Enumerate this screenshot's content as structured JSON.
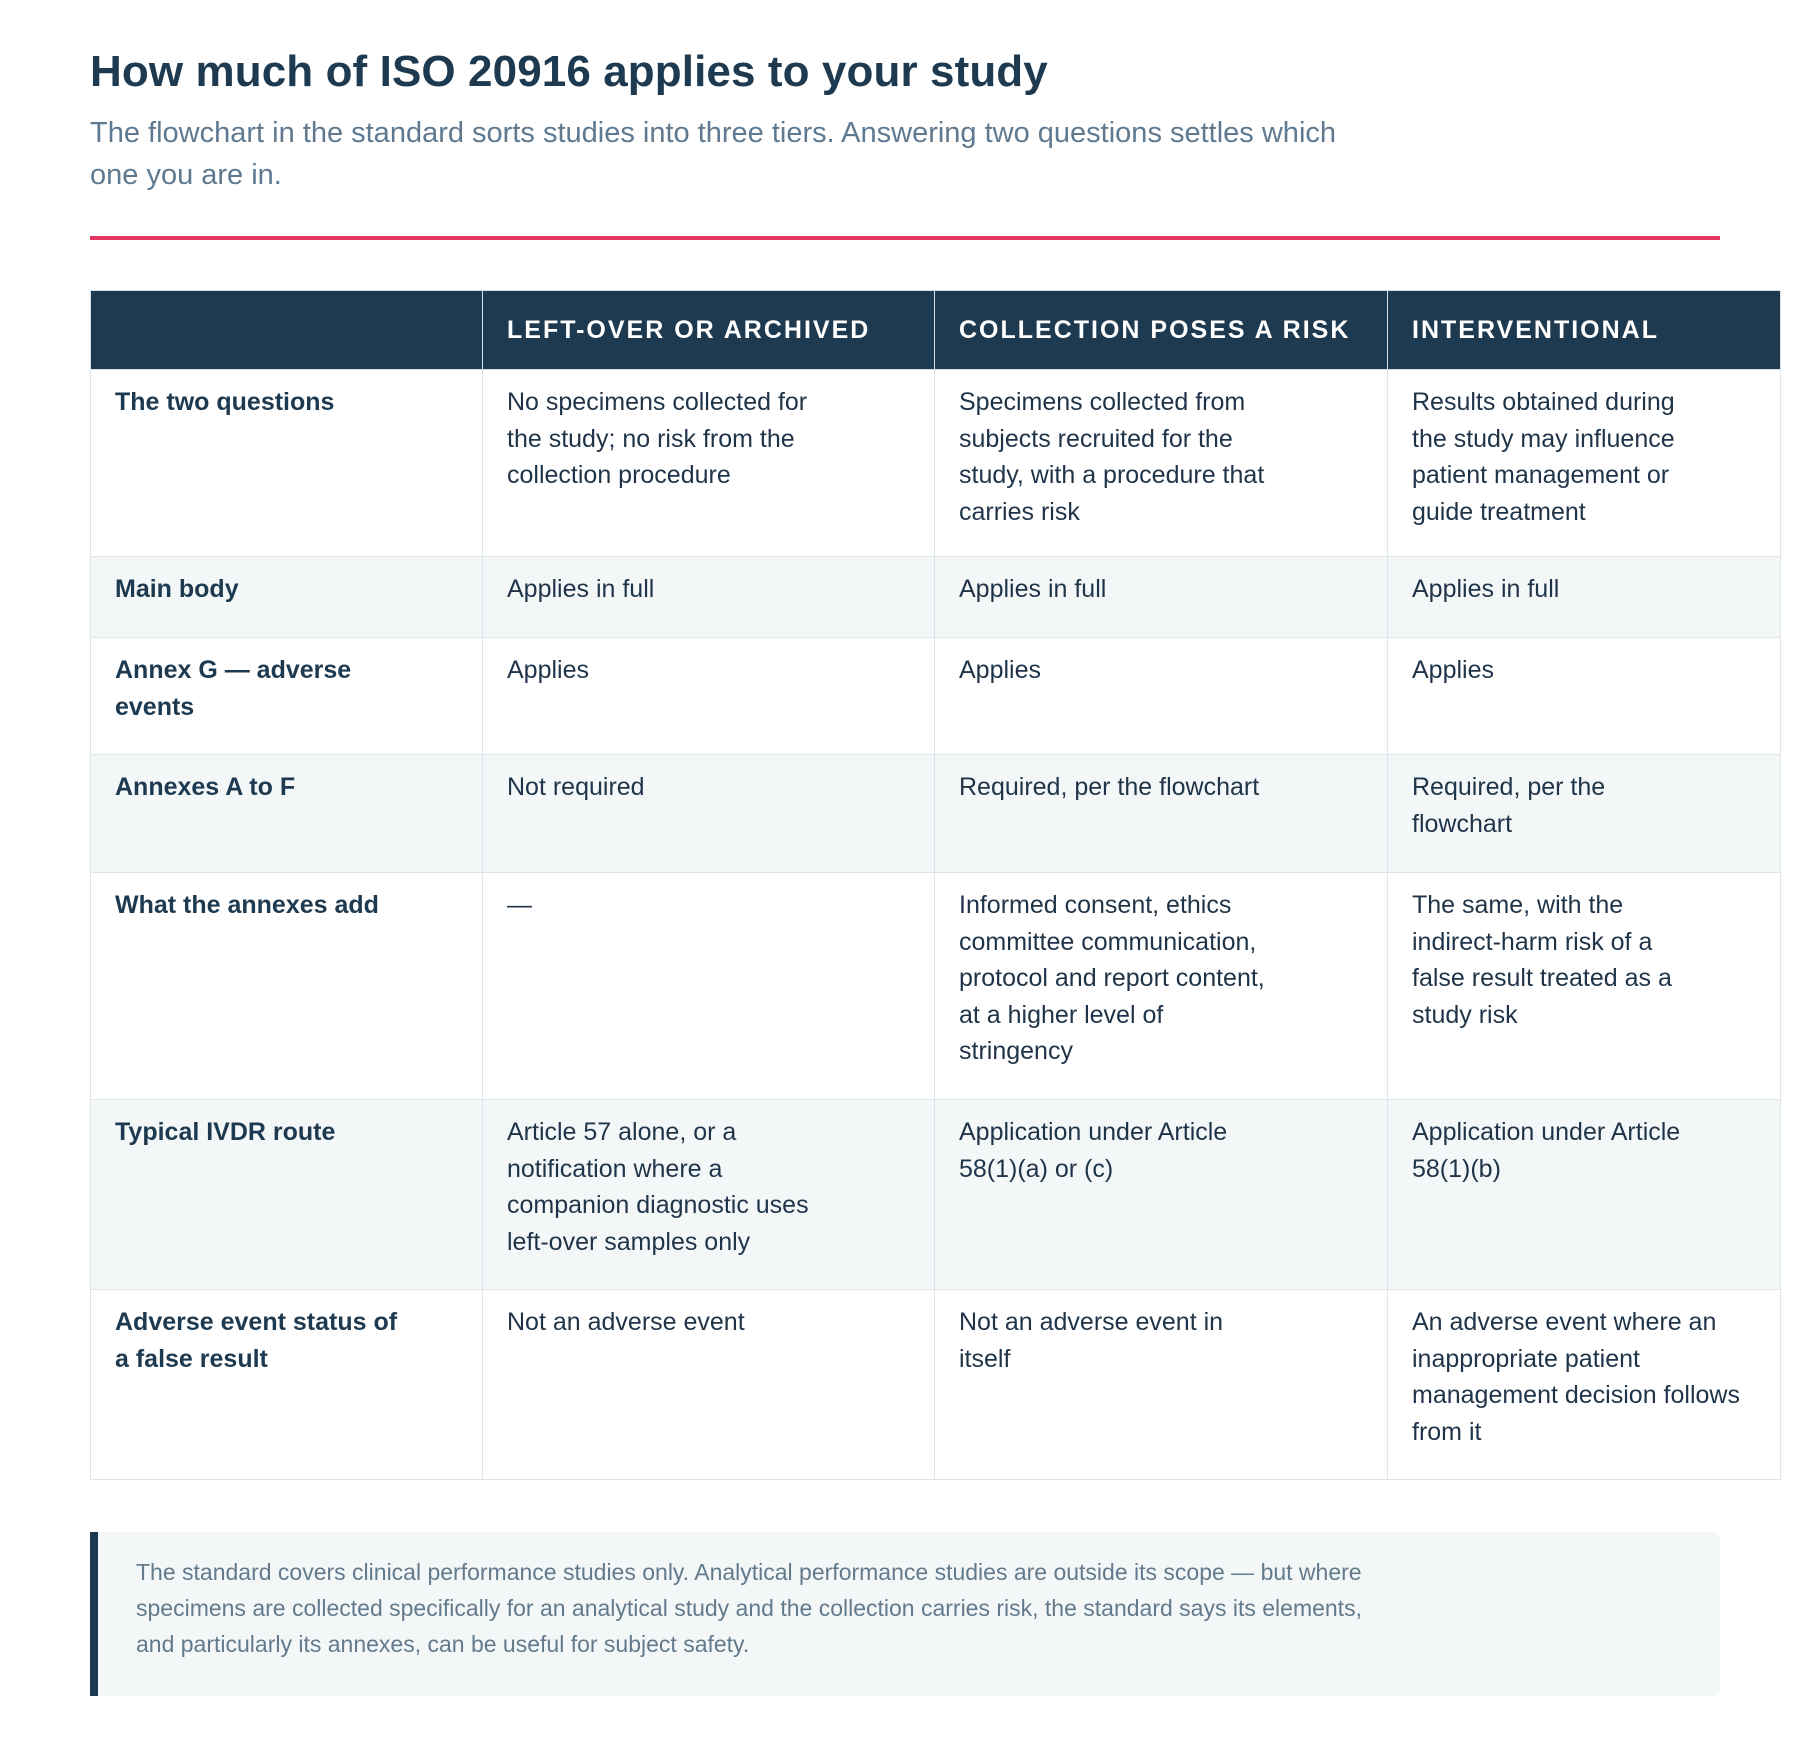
{
  "header": {
    "title": "How much of ISO 20916 applies to your study",
    "subtitle": "The flowchart in the standard sorts studies into three tiers. Answering two questions settles which one you are in."
  },
  "table": {
    "columns": [
      "",
      "Left-over or archived",
      "Collection poses a risk",
      "Interventional"
    ],
    "rows": [
      {
        "label": "The two questions",
        "cells": [
          "No specimens collected for the study; no risk from the collection procedure",
          "Specimens collected from subjects recruited for the study, with a procedure that carries risk",
          "Results obtained during the study may influence patient management or guide treatment"
        ]
      },
      {
        "label": "Main body",
        "cells": [
          "Applies in full",
          "Applies in full",
          "Applies in full"
        ]
      },
      {
        "label": "Annex G — adverse events",
        "cells": [
          "Applies",
          "Applies",
          "Applies"
        ]
      },
      {
        "label": "Annexes A to F",
        "cells": [
          "Not required",
          "Required, per the flowchart",
          "Required, per the flowchart"
        ]
      },
      {
        "label": "What the annexes add",
        "cells": [
          "—",
          "Informed consent, ethics committee communication, protocol and report content, at a higher level of stringency",
          "The same, with the indirect-harm risk of a false result treated as a study risk"
        ]
      },
      {
        "label": "Typical IVDR route",
        "cells": [
          "Article 57 alone, or a notification where a companion diagnostic uses left-over samples only",
          "Application under Article 58(1)(a) or (c)",
          "Application under Article 58(1)(b)"
        ]
      },
      {
        "label": "Adverse event status of a false result",
        "cells": [
          "Not an adverse event",
          "Not an adverse event in itself",
          "An adverse event where an inappropriate patient management decision follows from it"
        ]
      }
    ]
  },
  "note": {
    "text": "The standard covers clinical performance studies only. Analytical performance studies are outside its scope — but where specimens are collected specifically for an analytical study and the collection carries risk, the standard says its elements, and particularly its annexes, can be useful for subject safety."
  },
  "colors": {
    "heading": "#1e3a50",
    "accent_rule": "#e0355f",
    "header_bg": "#1e3a50",
    "alt_row_bg": "#f4f7f8"
  }
}
